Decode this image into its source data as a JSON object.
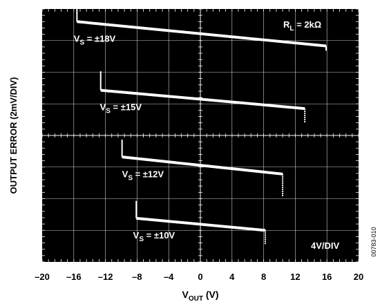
{
  "chart_data": {
    "type": "line",
    "xlabel": "V_OUT (V)",
    "xlabel_main": "V",
    "xlabel_sub": "OUT",
    "xlabel_rest": " (V)",
    "ylabel": "OUTPUT ERROR (2mV/DIV)",
    "xlim": [
      -20,
      20
    ],
    "x_ticks": [
      "–20",
      "–16",
      "–12",
      "–8",
      "–4",
      "0",
      "4",
      "8",
      "12",
      "16",
      "20"
    ],
    "y_scale": "2mV/DIV",
    "x_scale": "4V/DIV",
    "grid": true,
    "background": "#000000",
    "trace_color": "#ffffff",
    "annotations": {
      "load": {
        "main": "R",
        "sub": "L",
        "rest": " = 2kΩ"
      },
      "x_scale": "4V/DIV"
    },
    "series": [
      {
        "label_main": "V",
        "label_sub": "S",
        "label_rest": " = ±18V",
        "x": [
          -15.6,
          15.9
        ],
        "y_div": [
          7.6,
          6.83
        ],
        "start_glitch_div": 0.45,
        "end_glitch_div": -0.15
      },
      {
        "label_main": "V",
        "label_sub": "S",
        "label_rest": " = ±15V",
        "x": [
          -12.6,
          13.2
        ],
        "y_div": [
          5.43,
          4.85
        ],
        "start_glitch_div": 0.6,
        "end_glitch_div": -0.45
      },
      {
        "label_main": "V",
        "label_sub": "S",
        "label_rest": " = ±12V",
        "x": [
          -9.9,
          10.4
        ],
        "y_div": [
          3.32,
          2.78
        ],
        "start_glitch_div": 0.55,
        "end_glitch_div": -0.7
      },
      {
        "label_main": "V",
        "label_sub": "S",
        "label_rest": " = ±10V",
        "x": [
          -8.1,
          8.2
        ],
        "y_div": [
          1.38,
          1.0
        ],
        "start_glitch_div": 0.55,
        "end_glitch_div": -0.45
      }
    ],
    "figure_id": "00783-010"
  }
}
